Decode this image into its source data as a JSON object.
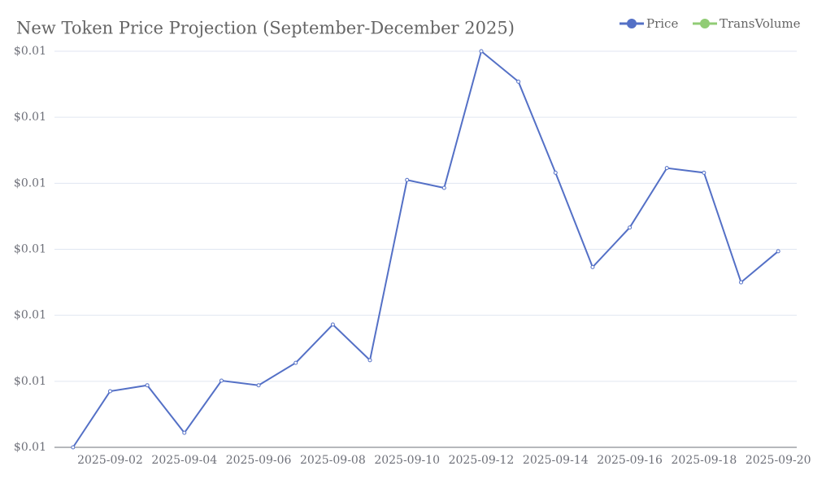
{
  "chart_data": {
    "type": "line",
    "title": "New Token Price Projection (September-December 2025)",
    "categories": [
      null,
      "2025-09-02",
      null,
      "2025-09-04",
      null,
      "2025-09-06",
      null,
      "2025-09-08",
      null,
      "2025-09-10",
      null,
      "2025-09-12",
      null,
      "2025-09-14",
      null,
      "2025-09-16",
      null,
      "2025-09-18",
      null,
      "2025-09-20"
    ],
    "series": [
      {
        "name": "Price",
        "color": "#5470c6",
        "values": [
          0.01,
          0.010085,
          0.010094,
          0.010022,
          0.010101,
          0.010094,
          0.010128,
          0.010186,
          0.010132,
          0.010405,
          0.010393,
          0.0106,
          0.010554,
          0.010416,
          0.010273,
          0.010333,
          0.010423,
          0.010416,
          0.01025,
          0.010297
        ]
      },
      {
        "name": "TransVolume",
        "color": "#91cc75",
        "values": [
          null,
          null,
          null,
          null,
          null,
          null,
          null,
          null,
          null,
          null,
          null,
          null,
          null,
          null,
          null,
          null,
          null,
          null,
          null,
          null
        ]
      }
    ],
    "ylim": [
      0.01,
      0.0106
    ],
    "yticks": [
      {
        "value": 0.01,
        "label": "$0.01"
      },
      {
        "value": 0.0101,
        "label": "$0.01"
      },
      {
        "value": 0.0102,
        "label": "$0.01"
      },
      {
        "value": 0.0103,
        "label": "$0.01"
      },
      {
        "value": 0.0104,
        "label": "$0.01"
      },
      {
        "value": 0.0105,
        "label": "$0.01"
      },
      {
        "value": 0.0106,
        "label": "$0.01"
      }
    ],
    "grid": true,
    "legend": "top-right"
  }
}
